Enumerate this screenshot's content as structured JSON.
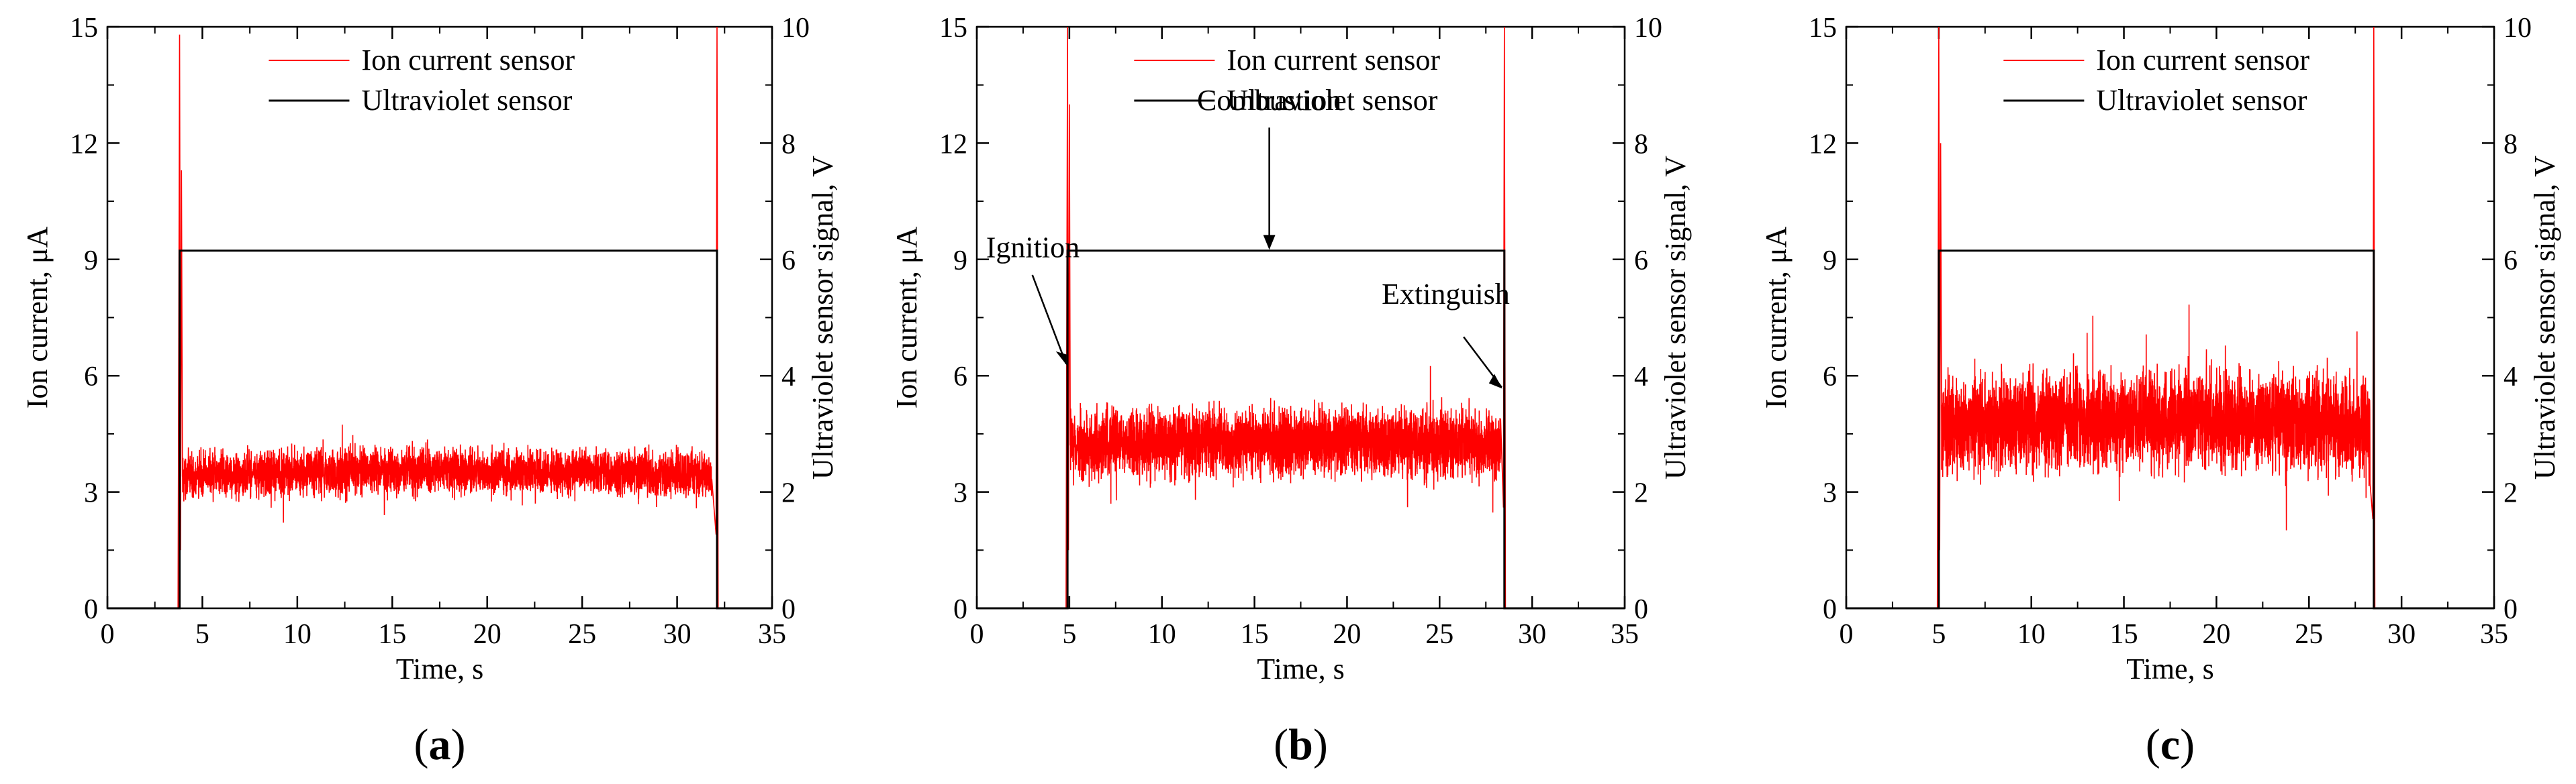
{
  "chart_data": [
    {
      "panel_label": "a",
      "type": "line",
      "xlabel": "Time, s",
      "ylabel": "Ion current, μA",
      "y2label": "Ultraviolet sensor signal, V",
      "xlim": [
        0,
        35
      ],
      "ylim": [
        0,
        15
      ],
      "y2lim": [
        0,
        10
      ],
      "xticks": [
        "0",
        "5",
        "10",
        "15",
        "20",
        "25",
        "30",
        "35"
      ],
      "yticks": [
        "0",
        "3",
        "6",
        "9",
        "12",
        "15"
      ],
      "y2ticks": [
        "0",
        "2",
        "4",
        "6",
        "8",
        "10"
      ],
      "legend": {
        "position": "top-center",
        "entries": [
          "Ion current sensor",
          "Ultraviolet sensor"
        ]
      },
      "series": [
        {
          "name": "Ion current sensor",
          "axis": "left",
          "color": "#ff0000",
          "start": 3.8,
          "end": 32.1,
          "spike_start": 14.8,
          "spike_start_secondary": 11.3,
          "spike_end": 15.0,
          "dip_end": 1.9,
          "steady_mean": 3.4,
          "steady_band": [
            2.6,
            4.5
          ],
          "drift": 0.15
        },
        {
          "name": "Ultraviolet sensor",
          "axis": "right",
          "color": "#000000",
          "points": [
            [
              0,
              0
            ],
            [
              3.8,
              0
            ],
            [
              3.8,
              6.15
            ],
            [
              32.1,
              6.15
            ],
            [
              32.1,
              0
            ],
            [
              35,
              0
            ]
          ]
        }
      ],
      "annotations": []
    },
    {
      "panel_label": "b",
      "type": "line",
      "xlabel": "Time, s",
      "ylabel": "Ion current, μA",
      "y2label": "Ultraviolet sensor signal, V",
      "xlim": [
        0,
        35
      ],
      "ylim": [
        0,
        15
      ],
      "y2lim": [
        0,
        10
      ],
      "xticks": [
        "0",
        "5",
        "10",
        "15",
        "20",
        "25",
        "30",
        "35"
      ],
      "yticks": [
        "0",
        "3",
        "6",
        "9",
        "12",
        "15"
      ],
      "y2ticks": [
        "0",
        "2",
        "4",
        "6",
        "8",
        "10"
      ],
      "legend": {
        "position": "top-center",
        "entries": [
          "Ion current sensor",
          "Ultraviolet sensor"
        ]
      },
      "series": [
        {
          "name": "Ion current sensor",
          "axis": "left",
          "color": "#ff0000",
          "start": 4.9,
          "end": 28.5,
          "spike_start": 15.0,
          "spike_start_secondary": 13.0,
          "spike_end": 15.0,
          "dip_end": 2.6,
          "steady_mean": 4.2,
          "steady_band": [
            3.0,
            5.8
          ],
          "drift": 0.1
        },
        {
          "name": "Ultraviolet sensor",
          "axis": "right",
          "color": "#000000",
          "points": [
            [
              0,
              0
            ],
            [
              4.9,
              0
            ],
            [
              4.9,
              6.15
            ],
            [
              28.5,
              6.15
            ],
            [
              28.5,
              0
            ],
            [
              35,
              0
            ]
          ]
        }
      ],
      "annotations": [
        {
          "text": "Ignition",
          "x": 4.9,
          "y": 9.3
        },
        {
          "text": "Combustion",
          "x": 15.8,
          "y": 13.1
        },
        {
          "text": "Extinguish",
          "x": 28.5,
          "y": 8.1
        }
      ]
    },
    {
      "panel_label": "c",
      "type": "line",
      "xlabel": "Time, s",
      "ylabel": "Ion current, μA",
      "y2label": "Ultraviolet sensor signal, V",
      "xlim": [
        0,
        35
      ],
      "ylim": [
        0,
        15
      ],
      "y2lim": [
        0,
        10
      ],
      "xticks": [
        "0",
        "5",
        "10",
        "15",
        "20",
        "25",
        "30",
        "35"
      ],
      "yticks": [
        "0",
        "3",
        "6",
        "9",
        "12",
        "15"
      ],
      "y2ticks": [
        "0",
        "2",
        "4",
        "6",
        "8",
        "10"
      ],
      "legend": {
        "position": "top-center",
        "entries": [
          "Ion current sensor",
          "Ultraviolet sensor"
        ]
      },
      "series": [
        {
          "name": "Ion current sensor",
          "axis": "left",
          "color": "#ff0000",
          "start": 5.0,
          "end": 28.5,
          "spike_start": 15.0,
          "spike_start_secondary": 12.0,
          "spike_end": 15.0,
          "dip_end": 2.3,
          "steady_mean": 4.7,
          "steady_band": [
            2.8,
            6.7
          ],
          "drift": 0.2
        },
        {
          "name": "Ultraviolet sensor",
          "axis": "right",
          "color": "#000000",
          "points": [
            [
              0,
              0
            ],
            [
              5.0,
              0
            ],
            [
              5.0,
              6.15
            ],
            [
              28.5,
              6.15
            ],
            [
              28.5,
              0
            ],
            [
              35,
              0
            ]
          ]
        }
      ],
      "annotations": []
    }
  ]
}
